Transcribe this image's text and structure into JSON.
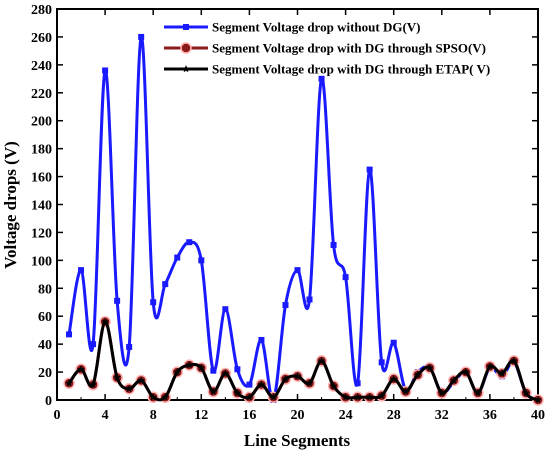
{
  "chart_data": {
    "type": "line",
    "xlabel": "Line Segments",
    "ylabel": "Voltage drops (V)",
    "xlim": [
      0,
      40
    ],
    "ylim": [
      0,
      280
    ],
    "xticks": [
      0,
      4,
      8,
      12,
      16,
      20,
      24,
      28,
      32,
      36,
      40
    ],
    "yticks": [
      0,
      20,
      40,
      60,
      80,
      100,
      120,
      140,
      160,
      180,
      200,
      220,
      240,
      260,
      280
    ],
    "grid": false,
    "legend_position": "top-right",
    "x": [
      1,
      2,
      3,
      4,
      5,
      6,
      7,
      8,
      9,
      10,
      11,
      12,
      13,
      14,
      15,
      16,
      17,
      18,
      19,
      20,
      21,
      22,
      23,
      24,
      25,
      26,
      27,
      28,
      29,
      30,
      31,
      32,
      33,
      34,
      35,
      36,
      37,
      38,
      39,
      40
    ],
    "series": [
      {
        "name": "Segment Voltage drop without DG(V)",
        "color": "#1a1aff",
        "marker": "square",
        "values": [
          47,
          93,
          40,
          236,
          71,
          38,
          260,
          70,
          83,
          102,
          113,
          100,
          21,
          65,
          22,
          11,
          43,
          0,
          68,
          93,
          72,
          230,
          111,
          88,
          12,
          165,
          27,
          41,
          7,
          20,
          23,
          5,
          13,
          20,
          5,
          23,
          17,
          27,
          5,
          0
        ]
      },
      {
        "name": "Segment Voltage drop with DG through SPSO(V)",
        "color": "#8b1a1a",
        "marker": "circle",
        "values": [
          12,
          22,
          11,
          56,
          16,
          8,
          14,
          2,
          2,
          20,
          25,
          23,
          6,
          19,
          5,
          2,
          11,
          2,
          15,
          17,
          12,
          28,
          10,
          2,
          2,
          2,
          3,
          15,
          6,
          18,
          23,
          5,
          14,
          20,
          5,
          24,
          19,
          28,
          5,
          0
        ]
      },
      {
        "name": "Segment Voltage drop with DG through ETAP( V)",
        "color": "#000000",
        "marker": "star",
        "values": [
          12,
          22,
          11,
          56,
          16,
          8,
          14,
          2,
          2,
          20,
          25,
          23,
          6,
          19,
          5,
          2,
          11,
          2,
          15,
          17,
          12,
          28,
          10,
          2,
          2,
          2,
          3,
          15,
          6,
          18,
          23,
          5,
          14,
          20,
          5,
          24,
          19,
          28,
          5,
          0
        ]
      }
    ]
  }
}
